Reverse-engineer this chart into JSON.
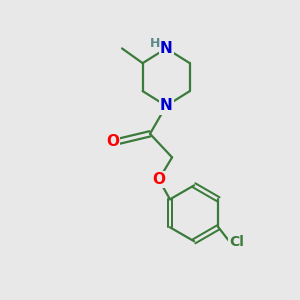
{
  "background_color": "#e8e8e8",
  "bond_color": "#3a7a3a",
  "N_color": "#0000cd",
  "O_color": "#ff0000",
  "Cl_color": "#3a7a3a",
  "H_color": "#5c8a8a",
  "line_width": 1.6,
  "figsize": [
    3.0,
    3.0
  ],
  "dpi": 100,
  "xlim": [
    0,
    10
  ],
  "ylim": [
    0,
    10
  ]
}
